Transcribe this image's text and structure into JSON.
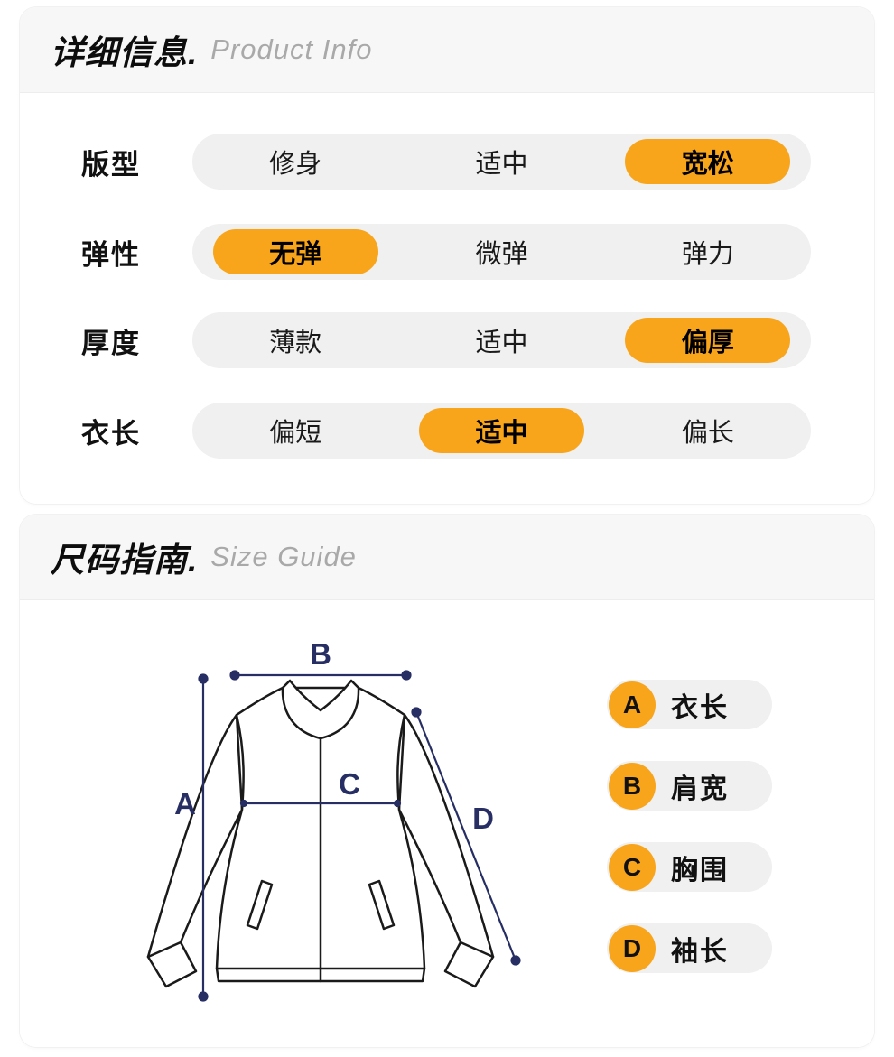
{
  "colors": {
    "accent_orange": "#F8A51B",
    "pill_gray": "#F0F0F0",
    "header_gray": "#F7F7F7",
    "measure_navy": "#262E63",
    "title_gray": "#A9A9A9",
    "text_black": "#111111"
  },
  "product_info": {
    "title_zh": "详细信息.",
    "title_en": "Product Info",
    "rows": [
      {
        "label": "版型",
        "options": [
          "修身",
          "适中",
          "宽松"
        ],
        "selected_index": 2,
        "selected_option": "宽松"
      },
      {
        "label": "弹性",
        "options": [
          "无弹",
          "微弹",
          "弹力"
        ],
        "selected_index": 0,
        "selected_option": "无弹"
      },
      {
        "label": "厚度",
        "options": [
          "薄款",
          "适中",
          "偏厚"
        ],
        "selected_index": 2,
        "selected_option": "偏厚"
      },
      {
        "label": "衣长",
        "options": [
          "偏短",
          "适中",
          "偏长"
        ],
        "selected_index": 1,
        "selected_option": "适中"
      }
    ]
  },
  "size_guide": {
    "title_zh": "尺码指南.",
    "title_en": "Size Guide",
    "legend": [
      {
        "key": "A",
        "label": "衣长"
      },
      {
        "key": "B",
        "label": "肩宽"
      },
      {
        "key": "C",
        "label": "胸围"
      },
      {
        "key": "D",
        "label": "袖长"
      }
    ]
  }
}
